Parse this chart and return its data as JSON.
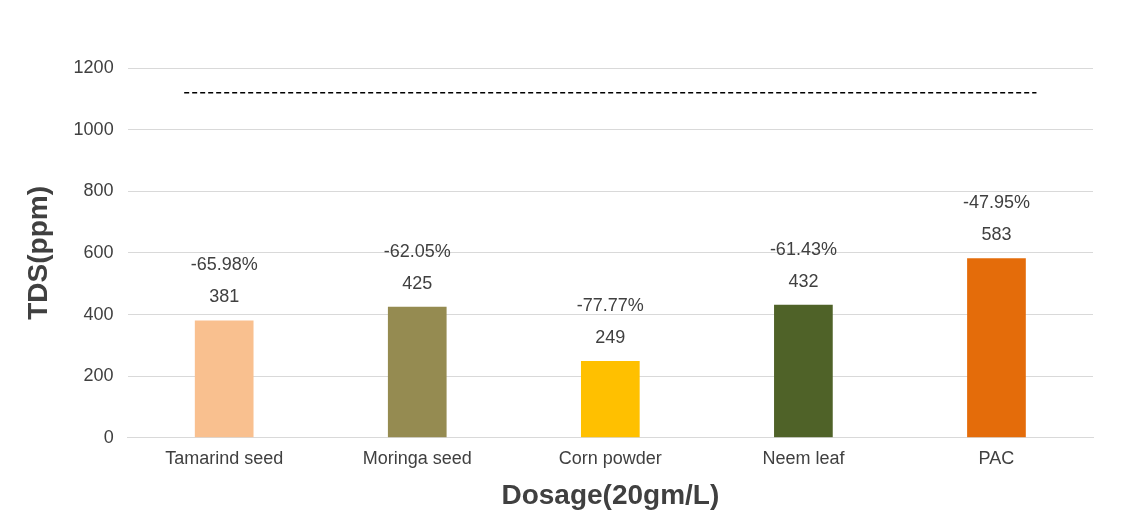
{
  "chart_data": {
    "type": "bar",
    "xlabel": "Dosage(20gm/L)",
    "ylabel": "TDS(ppm)",
    "categories": [
      "Tamarind seed",
      "Moringa seed",
      "Corn powder",
      "Neem leaf",
      "PAC"
    ],
    "values": [
      381,
      425,
      249,
      432,
      583
    ],
    "colors": [
      "#f9c08f",
      "#958b51",
      "#ffc000",
      "#4f6228",
      "#e46c0a"
    ],
    "ylim": [
      0,
      1200
    ],
    "yticks": [
      0,
      200,
      400,
      600,
      800,
      1000,
      1200
    ],
    "grid": "y",
    "legend": false,
    "data_labels": true,
    "ref_lines": [
      {
        "axis": "y",
        "value": 1120,
        "color": "#000000",
        "line_style": "dashed"
      }
    ],
    "annotations": [
      {
        "text": "-65.98%",
        "x": "Tamarind seed",
        "y": 381
      },
      {
        "text": "-62.05%",
        "x": "Moringa seed",
        "y": 425
      },
      {
        "text": "-77.77%",
        "x": "Corn powder",
        "y": 249
      },
      {
        "text": "-61.43%",
        "x": "Neem leaf",
        "y": 432
      },
      {
        "text": "-47.95%",
        "x": "PAC",
        "y": 583
      }
    ]
  }
}
